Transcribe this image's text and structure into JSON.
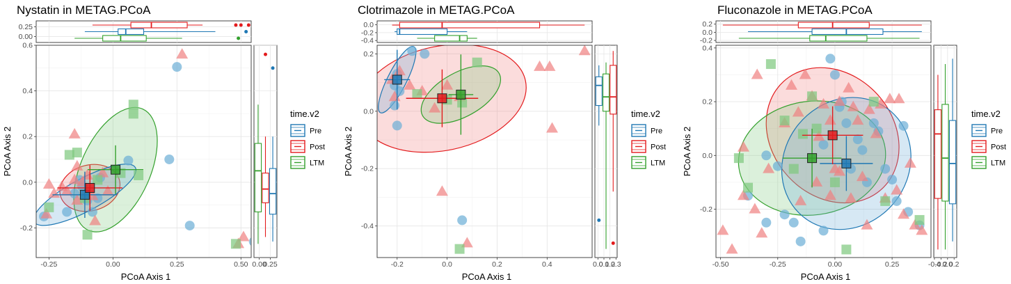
{
  "colors": {
    "Pre": "#1F78B4",
    "Post": "#E31A1C",
    "LTM": "#33A02C",
    "pre_fill": "#6BAED6",
    "post_fill": "#F08080",
    "ltm_fill": "#7FC97F"
  },
  "chart_data": [
    {
      "type": "scatter",
      "title": "Nystatin in METAG.PCoA",
      "xlabel": "PCoA Axis 1",
      "ylabel": "PCoA Axis 2",
      "xlim": [
        -0.3,
        0.54
      ],
      "ylim": [
        -0.33,
        0.6
      ],
      "xticks": [
        -0.25,
        0.0,
        0.25,
        0.5
      ],
      "xtick_labels": [
        "-0.25",
        "0.00",
        "0.25",
        "0.50"
      ],
      "yticks": [
        -0.2,
        0.0,
        0.2,
        0.4,
        0.6
      ],
      "ytick_labels": [
        "-0.2",
        "0.0",
        "0.2",
        "0.4",
        "0.6"
      ],
      "top_ticks": [
        0.0,
        0.25
      ],
      "top_tick_labels": [
        "0.00",
        "0.25"
      ],
      "top_lim": [
        -0.15,
        0.4
      ],
      "right_ticks": [
        0.0,
        0.25
      ],
      "right_tick_labels": [
        "0.00",
        "0.25"
      ],
      "right_lim": [
        -0.12,
        0.4
      ],
      "legend_title": "time.v2",
      "legend": [
        "Pre",
        "Post",
        "LTM"
      ],
      "centroids": {
        "Pre": [
          -0.11,
          -0.055
        ],
        "Post": [
          -0.09,
          -0.025
        ],
        "LTM": [
          0.01,
          0.055
        ]
      },
      "series": [
        {
          "name": "Pre",
          "points": [
            [
              -0.27,
              -0.15
            ],
            [
              -0.18,
              -0.13
            ],
            [
              -0.15,
              -0.05
            ],
            [
              -0.12,
              -0.02
            ],
            [
              -0.1,
              -0.08
            ],
            [
              -0.08,
              -0.13
            ],
            [
              -0.06,
              -0.07
            ],
            [
              -0.13,
              0.01
            ],
            [
              -0.05,
              0.02
            ],
            [
              0.06,
              0.095
            ],
            [
              0.22,
              0.1
            ],
            [
              0.25,
              0.505
            ],
            [
              0.3,
              -0.19
            ],
            [
              0.55,
              -0.26
            ]
          ]
        },
        {
          "name": "Post",
          "points": [
            [
              -0.25,
              -0.01
            ],
            [
              -0.23,
              -0.05
            ],
            [
              -0.2,
              -0.02
            ],
            [
              -0.18,
              -0.04
            ],
            [
              -0.15,
              0.01
            ],
            [
              -0.14,
              -0.08
            ],
            [
              -0.12,
              0.0
            ],
            [
              -0.1,
              0.03
            ],
            [
              -0.08,
              -0.06
            ],
            [
              -0.07,
              -0.17
            ],
            [
              -0.04,
              0.04
            ],
            [
              -0.02,
              -0.04
            ],
            [
              -0.15,
              0.21
            ],
            [
              -0.14,
              0.07
            ],
            [
              -0.26,
              -0.14
            ],
            [
              0.27,
              0.56
            ],
            [
              0.51,
              -0.24
            ],
            [
              0.49,
              -0.27
            ]
          ]
        },
        {
          "name": "LTM",
          "points": [
            [
              -0.25,
              -0.11
            ],
            [
              -0.17,
              0.12
            ],
            [
              -0.14,
              0.13
            ],
            [
              -0.11,
              -0.07
            ],
            [
              -0.1,
              -0.23
            ],
            [
              -0.06,
              0.01
            ],
            [
              0.03,
              0.04
            ],
            [
              0.08,
              0.34
            ],
            [
              0.08,
              0.3
            ],
            [
              0.1,
              0.03
            ],
            [
              0.48,
              -0.27
            ]
          ]
        }
      ],
      "box_top": {
        "Pre": [
          -0.11,
          0.02,
          0.05,
          0.12,
          0.4
        ],
        "Post": [
          -0.08,
          0.07,
          0.15,
          0.29,
          0.35
        ],
        "LTM": [
          -0.15,
          -0.04,
          0.03,
          0.13,
          0.27
        ]
      },
      "box_top_outliers": {
        "Pre": [
          0.52
        ],
        "Post": [
          0.48,
          0.5,
          0.53
        ],
        "LTM": [
          0.49
        ]
      },
      "box_right": {
        "Pre": [
          -0.26,
          -0.14,
          -0.05,
          0.06,
          0.2
        ],
        "Post": [
          -0.24,
          -0.09,
          -0.03,
          0.04,
          0.2
        ],
        "LTM": [
          -0.27,
          -0.13,
          0.05,
          0.17,
          0.34
        ]
      },
      "box_right_outliers": {
        "Pre": [
          0.5
        ],
        "Post": [
          0.56
        ],
        "LTM": []
      }
    },
    {
      "type": "scatter",
      "title": "Clotrimazole in METAG.PCoA",
      "xlabel": "PCoA Axis 1",
      "ylabel": "PCoA Axis 2",
      "xlim": [
        -0.28,
        0.58
      ],
      "ylim": [
        -0.51,
        0.23
      ],
      "xticks": [
        -0.2,
        0.0,
        0.2,
        0.4
      ],
      "xtick_labels": [
        "-0.2",
        "0.0",
        "0.2",
        "0.4"
      ],
      "yticks": [
        -0.4,
        -0.2,
        0.0,
        0.2
      ],
      "ytick_labels": [
        "-0.4",
        "-0.2",
        "0.0",
        "0.2"
      ],
      "top_ticks": [
        -0.4,
        -0.2,
        0.0
      ],
      "top_tick_labels": [
        "-0.4",
        "-0.2",
        "0.0"
      ],
      "top_lim": [
        -0.45,
        0.1
      ],
      "right_ticks": [
        0.0,
        0.1,
        0.2,
        0.3
      ],
      "right_tick_labels": [
        "0.0",
        "0.1",
        "0.2",
        "0.3"
      ],
      "right_lim": [
        -0.05,
        0.32
      ],
      "legend_title": "time.v2",
      "legend": [
        "Pre",
        "Post",
        "LTM"
      ],
      "centroids": {
        "Pre": [
          -0.2,
          0.11
        ],
        "Post": [
          -0.02,
          0.045
        ],
        "LTM": [
          0.055,
          0.058
        ]
      },
      "series": [
        {
          "name": "Pre",
          "points": [
            [
              -0.21,
              0.09
            ],
            [
              -0.2,
              0.13
            ],
            [
              -0.2,
              -0.05
            ],
            [
              -0.21,
              0.02
            ],
            [
              -0.19,
              0.07
            ],
            [
              -0.14,
              0.21
            ],
            [
              -0.09,
              0.2
            ],
            [
              0.06,
              -0.38
            ]
          ]
        },
        {
          "name": "Post",
          "points": [
            [
              -0.22,
              0.11
            ],
            [
              -0.21,
              0.05
            ],
            [
              -0.19,
              0.14
            ],
            [
              -0.15,
              0.09
            ],
            [
              -0.1,
              0.07
            ],
            [
              -0.05,
              0.01
            ],
            [
              0.0,
              0.09
            ],
            [
              0.05,
              0.05
            ],
            [
              0.37,
              0.155
            ],
            [
              0.41,
              0.155
            ],
            [
              0.42,
              -0.06
            ],
            [
              0.55,
              0.21
            ],
            [
              -0.02,
              -0.28
            ],
            [
              0.08,
              -0.46
            ]
          ]
        },
        {
          "name": "LTM",
          "points": [
            [
              -0.12,
              0.06
            ],
            [
              0.0,
              0.04
            ],
            [
              0.12,
              0.17
            ],
            [
              0.06,
              0.03
            ],
            [
              0.05,
              -0.48
            ]
          ]
        }
      ],
      "box_top": {
        "Pre": [
          -0.21,
          -0.2,
          -0.19,
          0.0,
          0.08
        ],
        "Post": [
          -0.22,
          -0.19,
          -0.02,
          0.37,
          0.55
        ],
        "LTM": [
          -0.12,
          -0.05,
          0.05,
          0.08,
          0.12
        ]
      },
      "box_top_outliers": {
        "Pre": [],
        "Post": [],
        "LTM": []
      },
      "box_right": {
        "Pre": [
          -0.05,
          0.02,
          0.09,
          0.12,
          0.16
        ],
        "Post": [
          -0.28,
          -0.01,
          0.05,
          0.16,
          0.21
        ],
        "LTM": [
          -0.48,
          0.0,
          0.05,
          0.13,
          0.17
        ]
      },
      "box_right_outliers": {
        "Pre": [
          -0.38
        ],
        "Post": [
          -0.46
        ],
        "LTM": []
      }
    },
    {
      "type": "scatter",
      "title": "Fluconazole in METAG.PCoA",
      "xlabel": "PCoA Axis 1",
      "ylabel": "PCoA Axis 2",
      "xlim": [
        -0.52,
        0.42
      ],
      "ylim": [
        -0.38,
        0.41
      ],
      "xticks": [
        -0.5,
        -0.25,
        0.0,
        0.25
      ],
      "xtick_labels": [
        "-0.50",
        "-0.25",
        "0.00",
        "0.25"
      ],
      "yticks": [
        -0.2,
        0.0,
        0.2,
        0.4
      ],
      "ytick_labels": [
        "-0.2",
        "0.0",
        "0.2",
        "0.4"
      ],
      "top_ticks": [
        -0.2,
        0.0,
        0.2
      ],
      "top_tick_labels": [
        "-0.2",
        "0.0",
        "0.2"
      ],
      "top_lim": [
        -0.25,
        0.28
      ],
      "right_ticks": [
        -0.4,
        -0.2,
        0.0,
        0.2
      ],
      "right_tick_labels": [
        "-0.4",
        "-0.2",
        "0.0",
        "0.2"
      ],
      "right_lim": [
        -0.42,
        0.28
      ],
      "legend_title": "time.v2",
      "legend": [
        "Pre",
        "Post",
        "LTM"
      ],
      "centroids": {
        "Pre": [
          0.05,
          -0.03
        ],
        "Post": [
          -0.01,
          0.075
        ],
        "LTM": [
          -0.1,
          -0.01
        ]
      },
      "series": [
        {
          "name": "Pre",
          "points": [
            [
              -0.38,
              -0.15
            ],
            [
              -0.3,
              0.0
            ],
            [
              -0.25,
              -0.04
            ],
            [
              -0.22,
              -0.22
            ],
            [
              -0.18,
              -0.25
            ],
            [
              -0.15,
              -0.32
            ],
            [
              -0.05,
              0.04
            ],
            [
              -0.02,
              0.36
            ],
            [
              0.0,
              0.3
            ],
            [
              0.03,
              0.2
            ],
            [
              0.05,
              0.12
            ],
            [
              0.07,
              -0.05
            ],
            [
              0.1,
              0.06
            ],
            [
              0.12,
              0.02
            ],
            [
              0.14,
              -0.1
            ],
            [
              0.17,
              0.12
            ],
            [
              0.19,
              0.09
            ],
            [
              0.22,
              -0.05
            ],
            [
              0.25,
              -0.09
            ],
            [
              0.27,
              -0.17
            ],
            [
              0.3,
              0.11
            ],
            [
              0.32,
              -0.21
            ],
            [
              0.37,
              -0.26
            ],
            [
              -0.3,
              -0.25
            ],
            [
              -0.05,
              -0.28
            ],
            [
              0.02,
              0.18
            ]
          ]
        },
        {
          "name": "Post",
          "points": [
            [
              -0.49,
              -0.28
            ],
            [
              -0.45,
              -0.35
            ],
            [
              -0.4,
              -0.15
            ],
            [
              -0.35,
              -0.2
            ],
            [
              -0.32,
              -0.29
            ],
            [
              -0.29,
              -0.05
            ],
            [
              -0.22,
              0.12
            ],
            [
              -0.19,
              0.26
            ],
            [
              -0.16,
              0.16
            ],
            [
              -0.13,
              0.3
            ],
            [
              -0.1,
              0.22
            ],
            [
              -0.07,
              0.07
            ],
            [
              -0.05,
              0.19
            ],
            [
              -0.02,
              0.13
            ],
            [
              0.0,
              -0.05
            ],
            [
              0.02,
              0.2
            ],
            [
              0.06,
              0.25
            ],
            [
              0.08,
              0.18
            ],
            [
              0.1,
              0.13
            ],
            [
              0.12,
              -0.08
            ],
            [
              0.15,
              0.17
            ],
            [
              0.18,
              0.08
            ],
            [
              0.2,
              0.19
            ],
            [
              0.22,
              -0.16
            ],
            [
              0.24,
              0.21
            ],
            [
              0.28,
              0.21
            ],
            [
              0.27,
              -0.13
            ],
            [
              0.35,
              -0.26
            ],
            [
              -0.4,
              0.03
            ],
            [
              -0.34,
              0.3
            ],
            [
              -0.15,
              -0.17
            ],
            [
              -0.08,
              -0.1
            ],
            [
              -0.02,
              -0.15
            ],
            [
              0.02,
              -0.06
            ],
            [
              0.07,
              -0.16
            ],
            [
              0.3,
              -0.22
            ],
            [
              0.33,
              -0.03
            ],
            [
              0.38,
              -0.28
            ],
            [
              0.14,
              -0.26
            ]
          ]
        },
        {
          "name": "LTM",
          "points": [
            [
              -0.42,
              -0.01
            ],
            [
              -0.38,
              -0.12
            ],
            [
              -0.28,
              0.34
            ],
            [
              -0.22,
              0.13
            ],
            [
              -0.18,
              -0.05
            ],
            [
              -0.14,
              0.08
            ],
            [
              -0.1,
              0.22
            ],
            [
              -0.08,
              0.1
            ],
            [
              0.0,
              -0.1
            ],
            [
              0.05,
              -0.35
            ],
            [
              0.22,
              -0.17
            ],
            [
              0.17,
              0.2
            ],
            [
              0.37,
              -0.24
            ]
          ]
        }
      ],
      "box_top": {
        "Pre": [
          -0.38,
          -0.1,
          0.05,
          0.21,
          0.38
        ],
        "Post": [
          -0.49,
          -0.16,
          -0.01,
          0.15,
          0.38
        ],
        "LTM": [
          -0.42,
          -0.11,
          -0.04,
          0.14,
          0.37
        ]
      },
      "box_top_outliers": {
        "Pre": [],
        "Post": [],
        "LTM": []
      },
      "box_right": {
        "Pre": [
          -0.32,
          -0.18,
          -0.03,
          0.13,
          0.36
        ],
        "Post": [
          -0.35,
          -0.16,
          0.08,
          0.17,
          0.3
        ],
        "LTM": [
          -0.35,
          -0.17,
          -0.01,
          0.19,
          0.34
        ]
      },
      "box_right_outliers": {
        "Pre": [],
        "Post": [],
        "LTM": []
      }
    }
  ]
}
